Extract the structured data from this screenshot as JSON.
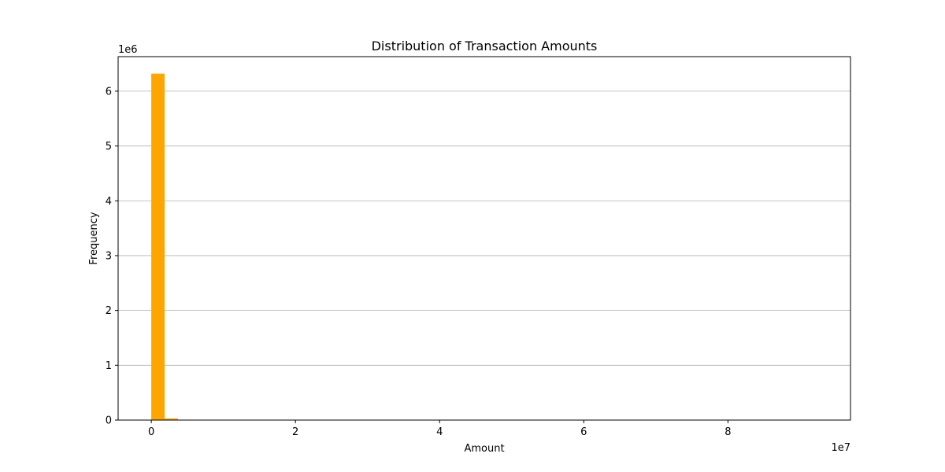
{
  "chart_data": {
    "type": "bar",
    "title": "Distribution of Transaction Amounts",
    "xlabel": "Amount",
    "ylabel": "Frequency",
    "x_offset_label": "1e7",
    "y_offset_label": "1e6",
    "xlim": [
      -0.46,
      9.7
    ],
    "ylim": [
      0,
      6.63
    ],
    "x_ticks": [
      0,
      2,
      4,
      6,
      8
    ],
    "y_ticks": [
      0,
      1,
      2,
      3,
      4,
      5,
      6
    ],
    "grid": "y",
    "bar_color": "#FFA500",
    "bin_width": 0.1851,
    "bins": [
      {
        "x": 0.0,
        "value": 6.32
      },
      {
        "x": 0.1851,
        "value": 0.03
      },
      {
        "x": 0.3702,
        "value": 0.002
      },
      {
        "x": 0.5553,
        "value": 0.0005
      }
    ]
  }
}
